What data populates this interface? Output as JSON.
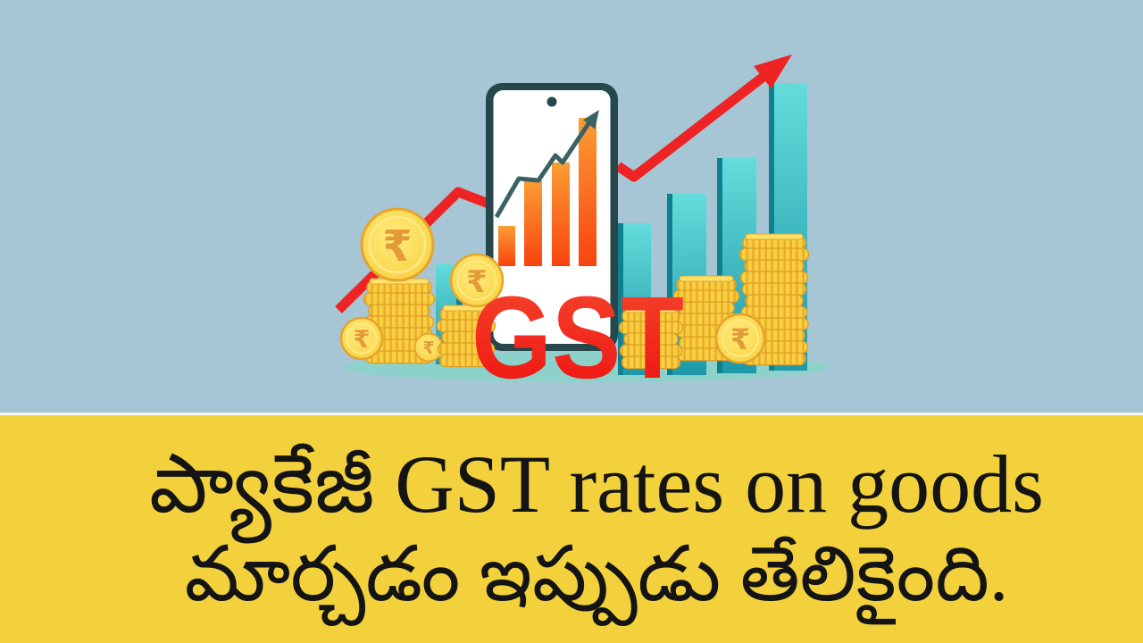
{
  "illustration": {
    "gst_label": "GST",
    "rupee_symbol": "₹",
    "colors": {
      "background": "#a6c6d6",
      "trend_red": "#ee2424",
      "gst_red_top": "#f23b28",
      "gst_red_bottom": "#ee1110",
      "orange_bar_top": "#fb9d35",
      "orange_bar_bottom": "#f8430e",
      "teal_bar_top": "#5fd8d8",
      "teal_bar_bottom": "#1e98a8",
      "coin_gold": "#f6cd3a",
      "phone_frame": "#26474c",
      "ground_shadow": "#8cd2ca"
    }
  },
  "banner": {
    "line1": "ప్యాకేజీ GST rates on goods",
    "line2": "మార్చడం ఇప్పుడు తేలికైంది.",
    "background": "#f2d13c",
    "text_color": "#141414"
  }
}
